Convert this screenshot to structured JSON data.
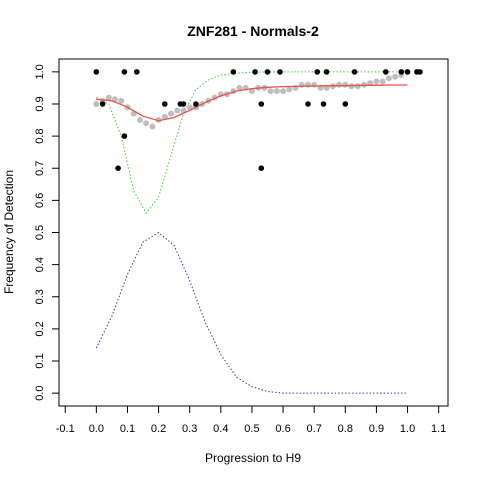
{
  "chart_data": {
    "type": "scatter",
    "title": "ZNF281 - Normals-2",
    "xlabel": "Progression to H9",
    "ylabel": "Frequency of Detection",
    "xlim": [
      -0.12,
      1.13
    ],
    "ylim": [
      -0.04,
      1.04
    ],
    "x_ticks": [
      -0.1,
      0.0,
      0.1,
      0.2,
      0.3,
      0.4,
      0.5,
      0.6,
      0.7,
      0.8,
      0.9,
      1.0,
      1.1
    ],
    "x_tick_labels": [
      "-0.1",
      "0.0",
      "0.1",
      "0.2",
      "0.3",
      "0.4",
      "0.5",
      "0.6",
      "0.7",
      "0.8",
      "0.9",
      "1.0",
      "1.1"
    ],
    "y_ticks": [
      0.0,
      0.1,
      0.2,
      0.3,
      0.4,
      0.5,
      0.6,
      0.7,
      0.8,
      0.9,
      1.0
    ],
    "y_tick_labels": [
      "0.0",
      "0.1",
      "0.2",
      "0.3",
      "0.4",
      "0.5",
      "0.6",
      "0.7",
      "0.8",
      "0.9",
      "1.0"
    ],
    "grid": false,
    "colors": {
      "observed": "#000000",
      "smoothed": "#bebebe",
      "fit": "#e8534a",
      "upper_band": "#33cc33",
      "density": "#3333cc"
    },
    "series": [
      {
        "style": "black-points",
        "x": [
          0.0,
          0.02,
          0.07,
          0.09,
          0.09,
          0.13,
          0.22,
          0.27,
          0.28,
          0.32,
          0.44,
          0.51,
          0.53,
          0.53,
          0.55,
          0.59,
          0.68,
          0.71,
          0.73,
          0.74,
          0.8,
          0.83,
          0.93,
          0.98,
          1.0,
          1.03,
          1.04
        ],
        "y": [
          1.0,
          0.9,
          0.7,
          0.8,
          1.0,
          1.0,
          0.9,
          0.9,
          0.9,
          0.9,
          1.0,
          1.0,
          0.7,
          0.9,
          1.0,
          1.0,
          0.9,
          1.0,
          0.9,
          1.0,
          0.9,
          1.0,
          1.0,
          1.0,
          1.0,
          1.0,
          1.0
        ]
      },
      {
        "style": "grey-points",
        "x": [
          0.0,
          0.02,
          0.04,
          0.06,
          0.08,
          0.1,
          0.12,
          0.14,
          0.16,
          0.18,
          0.2,
          0.22,
          0.24,
          0.26,
          0.28,
          0.3,
          0.32,
          0.34,
          0.36,
          0.38,
          0.4,
          0.42,
          0.44,
          0.46,
          0.48,
          0.5,
          0.52,
          0.54,
          0.56,
          0.58,
          0.6,
          0.62,
          0.64,
          0.66,
          0.68,
          0.7,
          0.72,
          0.74,
          0.76,
          0.78,
          0.8,
          0.82,
          0.84,
          0.86,
          0.88,
          0.9,
          0.92,
          0.94,
          0.96,
          0.98,
          1.0
        ],
        "y": [
          0.9,
          0.91,
          0.92,
          0.915,
          0.91,
          0.89,
          0.87,
          0.85,
          0.84,
          0.83,
          0.85,
          0.86,
          0.87,
          0.88,
          0.88,
          0.89,
          0.89,
          0.9,
          0.91,
          0.92,
          0.93,
          0.93,
          0.94,
          0.95,
          0.95,
          0.94,
          0.95,
          0.95,
          0.94,
          0.94,
          0.94,
          0.945,
          0.95,
          0.96,
          0.96,
          0.96,
          0.95,
          0.95,
          0.955,
          0.96,
          0.96,
          0.955,
          0.955,
          0.96,
          0.965,
          0.97,
          0.97,
          0.98,
          0.985,
          0.99,
          1.0
        ]
      },
      {
        "style": "red-line",
        "x": [
          0.0,
          0.05,
          0.1,
          0.15,
          0.2,
          0.25,
          0.3,
          0.35,
          0.4,
          0.45,
          0.5,
          0.55,
          0.6,
          0.65,
          0.7,
          0.75,
          0.8,
          0.85,
          0.9,
          0.95,
          1.0
        ],
        "y": [
          0.915,
          0.91,
          0.89,
          0.862,
          0.848,
          0.858,
          0.88,
          0.905,
          0.925,
          0.94,
          0.948,
          0.952,
          0.954,
          0.955,
          0.956,
          0.957,
          0.957,
          0.958,
          0.958,
          0.959,
          0.959
        ]
      },
      {
        "style": "green-dotted",
        "x": [
          0.0,
          0.04,
          0.08,
          0.12,
          0.16,
          0.2,
          0.24,
          0.28,
          0.32,
          0.36,
          0.4,
          0.44,
          0.48,
          0.52,
          0.56,
          0.6,
          0.7,
          0.8,
          0.9,
          1.0
        ],
        "y": [
          0.92,
          0.9,
          0.8,
          0.63,
          0.56,
          0.61,
          0.74,
          0.87,
          0.945,
          0.975,
          0.99,
          0.995,
          0.998,
          0.999,
          1.0,
          1.0,
          1.0,
          1.0,
          1.0,
          1.0
        ]
      },
      {
        "style": "blue-dotted",
        "x": [
          0.0,
          0.05,
          0.1,
          0.15,
          0.2,
          0.25,
          0.3,
          0.35,
          0.4,
          0.45,
          0.5,
          0.55,
          0.6,
          0.7,
          0.8,
          0.9,
          1.0
        ],
        "y": [
          0.14,
          0.24,
          0.37,
          0.47,
          0.5,
          0.46,
          0.35,
          0.22,
          0.12,
          0.05,
          0.02,
          0.005,
          0.0,
          0.0,
          0.0,
          0.0,
          0.0
        ]
      }
    ]
  }
}
